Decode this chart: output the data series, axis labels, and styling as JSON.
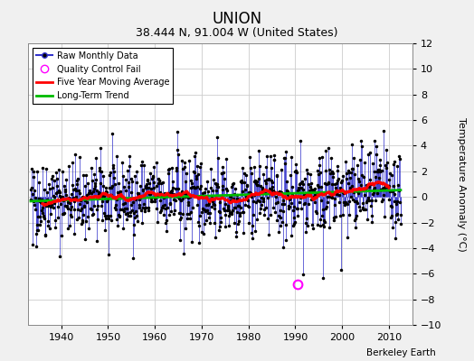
{
  "title": "UNION",
  "subtitle": "38.444 N, 91.004 W (United States)",
  "credit": "Berkeley Earth",
  "ylabel": "Temperature Anomaly (°C)",
  "xlim": [
    1933,
    2015
  ],
  "ylim": [
    -10,
    12
  ],
  "yticks": [
    -10,
    -8,
    -6,
    -4,
    -2,
    0,
    2,
    4,
    6,
    8,
    10,
    12
  ],
  "xticks": [
    1940,
    1950,
    1960,
    1970,
    1980,
    1990,
    2000,
    2010
  ],
  "seed": 42,
  "start_year": 1933.5,
  "end_year": 2012.5,
  "n_months": 948,
  "background_color": "#f0f0f0",
  "plot_bg_color": "#ffffff",
  "raw_line_color": "#3333cc",
  "raw_marker_color": "#000000",
  "moving_avg_color": "#ff0000",
  "trend_color": "#00bb00",
  "qc_fail_color": "#ff00ff",
  "qc_fail_year": 1990.5,
  "qc_fail_value": -6.8
}
